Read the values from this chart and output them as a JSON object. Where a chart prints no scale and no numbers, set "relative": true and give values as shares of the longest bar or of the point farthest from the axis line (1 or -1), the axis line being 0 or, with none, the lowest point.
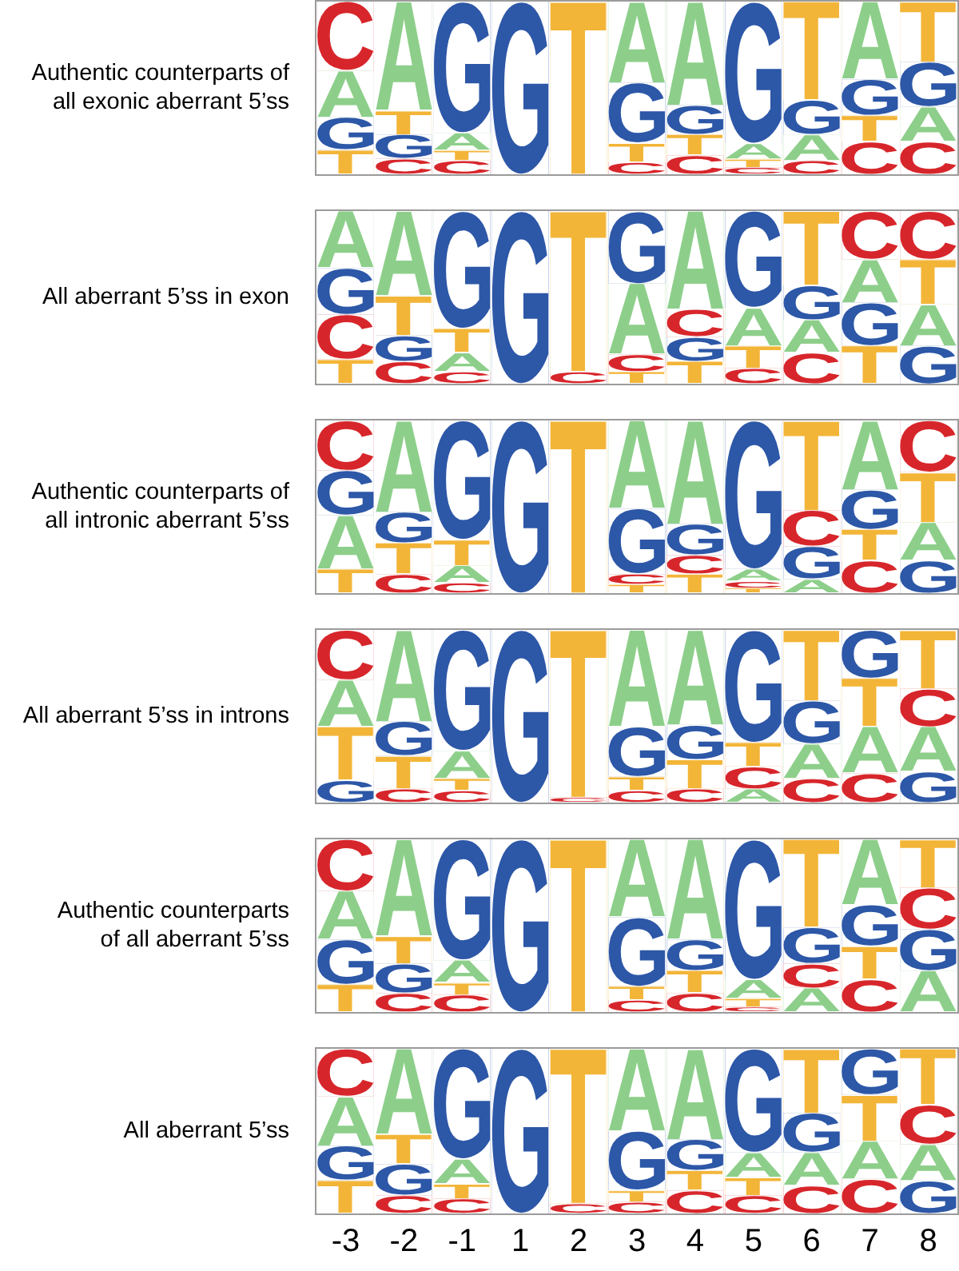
{
  "chart_data": [
    {
      "type": "bar",
      "stacked": true,
      "relative": true,
      "tick_labels": false,
      "ylabel": "Authentic counterparts of\nall exonic aberrant 5’ss",
      "categories": [
        null,
        null,
        null,
        null,
        null,
        null,
        null,
        null,
        null,
        null,
        null
      ],
      "series": [
        {
          "name": "C",
          "color": "#d7262b",
          "values": [
            null,
            0.09,
            0.08,
            null,
            null,
            0.07,
            0.11,
            0.04,
            0.08,
            0.19,
            0.19
          ]
        },
        {
          "name": "G",
          "color": "#2d57a7",
          "values": [
            null,
            null,
            null,
            1,
            null,
            null,
            null,
            null,
            null,
            null,
            null
          ]
        },
        {
          "name": "T",
          "color": "#f3b538",
          "values": [
            0.14,
            null,
            null,
            null,
            1,
            null,
            null,
            null,
            null,
            null,
            null
          ]
        },
        {
          "name": "A",
          "color": "#8dcf8a",
          "values": [
            null,
            null,
            null,
            null,
            null,
            null,
            null,
            null,
            0.15,
            null,
            0.2
          ]
        },
        {
          "name": "G",
          "color": "#2d57a7",
          "values": [
            0.19,
            0.14,
            null,
            null,
            null,
            null,
            null,
            null,
            null,
            null,
            null
          ]
        },
        {
          "name": "T",
          "color": "#f3b538",
          "values": [
            null,
            null,
            0.06,
            null,
            null,
            0.11,
            0.12,
            0.05,
            null,
            0.15,
            null
          ]
        },
        {
          "name": "A",
          "color": "#8dcf8a",
          "values": [
            0.27,
            null,
            0.1,
            null,
            null,
            null,
            null,
            0.09,
            null,
            null,
            null
          ]
        },
        {
          "name": "G",
          "color": "#2d57a7",
          "values": [
            null,
            null,
            null,
            null,
            null,
            0.35,
            0.17,
            null,
            0.2,
            0.21,
            0.26
          ]
        },
        {
          "name": "T",
          "color": "#f3b538",
          "values": [
            null,
            0.14,
            null,
            null,
            null,
            null,
            null,
            null,
            null,
            null,
            null
          ]
        },
        {
          "name": "A",
          "color": "#8dcf8a",
          "values": [
            null,
            0.63,
            null,
            null,
            null,
            0.47,
            0.6,
            null,
            null,
            0.45,
            null
          ]
        },
        {
          "name": "C",
          "color": "#d7262b",
          "values": [
            0.4,
            null,
            null,
            null,
            null,
            null,
            null,
            null,
            null,
            null,
            null
          ]
        },
        {
          "name": "G",
          "color": "#2d57a7",
          "values": [
            null,
            null,
            0.76,
            null,
            null,
            null,
            null,
            0.82,
            null,
            null,
            null
          ]
        },
        {
          "name": "T",
          "color": "#f3b538",
          "values": [
            null,
            null,
            null,
            null,
            null,
            null,
            null,
            null,
            0.57,
            null,
            0.35
          ]
        }
      ]
    },
    {
      "type": "bar",
      "stacked": true,
      "relative": true,
      "tick_labels": false,
      "ylabel": "All aberrant 5’ss in exon",
      "categories": [
        null,
        null,
        null,
        null,
        null,
        null,
        null,
        null,
        null,
        null,
        null
      ],
      "series": [
        {
          "name": "C",
          "color": "#d7262b",
          "values": [
            null,
            0.13,
            0.07,
            null,
            0.07,
            null,
            null,
            0.09,
            0.18,
            null,
            null
          ]
        },
        {
          "name": "G",
          "color": "#2d57a7",
          "values": [
            null,
            null,
            null,
            1,
            null,
            null,
            null,
            null,
            null,
            null,
            0.22
          ]
        },
        {
          "name": "T",
          "color": "#f3b538",
          "values": [
            0.14,
            null,
            null,
            null,
            null,
            0.07,
            0.13,
            null,
            null,
            0.22,
            null
          ]
        },
        {
          "name": "A",
          "color": "#8dcf8a",
          "values": [
            null,
            null,
            0.11,
            null,
            null,
            null,
            null,
            null,
            0.19,
            null,
            0.24
          ]
        },
        {
          "name": "C",
          "color": "#d7262b",
          "values": [
            0.26,
            null,
            null,
            null,
            null,
            0.1,
            null,
            null,
            null,
            null,
            null
          ]
        },
        {
          "name": "G",
          "color": "#2d57a7",
          "values": [
            null,
            0.15,
            null,
            null,
            null,
            null,
            0.14,
            null,
            null,
            0.25,
            null
          ]
        },
        {
          "name": "T",
          "color": "#f3b538",
          "values": [
            null,
            null,
            null,
            null,
            0.93,
            null,
            null,
            0.13,
            null,
            null,
            null
          ]
        },
        {
          "name": "A",
          "color": "#8dcf8a",
          "values": [
            null,
            null,
            null,
            null,
            null,
            0.41,
            null,
            0.22,
            null,
            0.25,
            null
          ]
        },
        {
          "name": "C",
          "color": "#d7262b",
          "values": [
            null,
            null,
            null,
            null,
            null,
            null,
            0.16,
            null,
            null,
            null,
            null
          ]
        },
        {
          "name": "G",
          "color": "#2d57a7",
          "values": [
            0.27,
            null,
            null,
            null,
            null,
            null,
            null,
            null,
            0.2,
            null,
            null
          ]
        },
        {
          "name": "T",
          "color": "#f3b538",
          "values": [
            null,
            0.23,
            0.14,
            null,
            null,
            null,
            null,
            null,
            null,
            null,
            0.26
          ]
        },
        {
          "name": "A",
          "color": "#8dcf8a",
          "values": [
            0.33,
            0.49,
            null,
            null,
            null,
            null,
            0.57,
            null,
            null,
            null,
            null
          ]
        },
        {
          "name": "C",
          "color": "#d7262b",
          "values": [
            null,
            null,
            null,
            null,
            null,
            null,
            null,
            null,
            null,
            0.28,
            0.28
          ]
        },
        {
          "name": "G",
          "color": "#2d57a7",
          "values": [
            null,
            null,
            0.68,
            null,
            null,
            0.42,
            null,
            0.56,
            null,
            null,
            null
          ]
        },
        {
          "name": "T",
          "color": "#f3b538",
          "values": [
            null,
            null,
            null,
            null,
            null,
            null,
            null,
            null,
            0.43,
            null,
            null
          ]
        }
      ]
    },
    {
      "type": "bar",
      "stacked": true,
      "relative": true,
      "tick_labels": false,
      "ylabel": "Authentic counterparts of\nall intronic aberrant 5’ss",
      "categories": [
        null,
        null,
        null,
        null,
        null,
        null,
        null,
        null,
        null,
        null,
        null
      ],
      "series": [
        {
          "name": "A",
          "color": "#8dcf8a",
          "values": [
            null,
            null,
            null,
            null,
            null,
            null,
            null,
            null,
            0.08,
            null,
            null
          ]
        },
        {
          "name": "C",
          "color": "#d7262b",
          "values": [
            null,
            0.11,
            0.06,
            null,
            null,
            null,
            null,
            null,
            null,
            0.19,
            null
          ]
        },
        {
          "name": "G",
          "color": "#2d57a7",
          "values": [
            null,
            null,
            null,
            1,
            null,
            null,
            null,
            null,
            null,
            null,
            0.19
          ]
        },
        {
          "name": "T",
          "color": "#f3b538",
          "values": [
            0.14,
            null,
            null,
            null,
            1,
            0.05,
            0.11,
            0.03,
            null,
            null,
            null
          ]
        },
        {
          "name": "A",
          "color": "#8dcf8a",
          "values": [
            0.31,
            null,
            0.1,
            null,
            null,
            null,
            null,
            null,
            null,
            null,
            0.22
          ]
        },
        {
          "name": "C",
          "color": "#d7262b",
          "values": [
            null,
            null,
            null,
            null,
            null,
            0.06,
            0.11,
            0.04,
            null,
            null,
            null
          ]
        },
        {
          "name": "G",
          "color": "#2d57a7",
          "values": [
            null,
            null,
            null,
            null,
            null,
            null,
            null,
            null,
            0.19,
            null,
            null
          ]
        },
        {
          "name": "T",
          "color": "#f3b538",
          "values": [
            null,
            0.18,
            null,
            null,
            null,
            null,
            null,
            null,
            null,
            0.18,
            null
          ]
        },
        {
          "name": "A",
          "color": "#8dcf8a",
          "values": [
            null,
            null,
            null,
            null,
            null,
            null,
            null,
            0.07,
            null,
            null,
            null
          ]
        },
        {
          "name": "C",
          "color": "#d7262b",
          "values": [
            null,
            null,
            null,
            null,
            null,
            null,
            null,
            null,
            0.21,
            null,
            null
          ]
        },
        {
          "name": "G",
          "color": "#2d57a7",
          "values": [
            0.26,
            0.18,
            null,
            null,
            null,
            0.38,
            0.18,
            null,
            null,
            0.23,
            null
          ]
        },
        {
          "name": "T",
          "color": "#f3b538",
          "values": [
            null,
            null,
            0.15,
            null,
            null,
            null,
            null,
            null,
            null,
            null,
            0.29
          ]
        },
        {
          "name": "A",
          "color": "#8dcf8a",
          "values": [
            null,
            0.53,
            null,
            null,
            null,
            0.51,
            0.6,
            null,
            null,
            0.4,
            null
          ]
        },
        {
          "name": "C",
          "color": "#d7262b",
          "values": [
            0.29,
            null,
            null,
            null,
            null,
            null,
            null,
            null,
            null,
            null,
            0.3
          ]
        },
        {
          "name": "G",
          "color": "#2d57a7",
          "values": [
            null,
            null,
            0.69,
            null,
            null,
            null,
            null,
            0.86,
            null,
            null,
            null
          ]
        },
        {
          "name": "T",
          "color": "#f3b538",
          "values": [
            null,
            null,
            null,
            null,
            null,
            null,
            null,
            null,
            0.52,
            null,
            null
          ]
        }
      ]
    },
    {
      "type": "bar",
      "stacked": true,
      "relative": true,
      "tick_labels": false,
      "ylabel": "All aberrant 5’ss in introns",
      "categories": [
        null,
        null,
        null,
        null,
        null,
        null,
        null,
        null,
        null,
        null,
        null
      ],
      "series": [
        {
          "name": "A",
          "color": "#8dcf8a",
          "values": [
            null,
            null,
            null,
            null,
            null,
            null,
            null,
            0.08,
            null,
            null,
            null
          ]
        },
        {
          "name": "C",
          "color": "#d7262b",
          "values": [
            null,
            0.08,
            0.07,
            null,
            0.03,
            0.07,
            0.08,
            null,
            0.14,
            0.17,
            null
          ]
        },
        {
          "name": "G",
          "color": "#2d57a7",
          "values": [
            0.13,
            null,
            null,
            1,
            null,
            null,
            null,
            null,
            null,
            null,
            0.18
          ]
        },
        {
          "name": "A",
          "color": "#8dcf8a",
          "values": [
            null,
            null,
            null,
            null,
            null,
            null,
            null,
            null,
            0.2,
            0.27,
            0.26
          ]
        },
        {
          "name": "C",
          "color": "#d7262b",
          "values": [
            null,
            null,
            null,
            null,
            null,
            null,
            null,
            0.13,
            null,
            null,
            null
          ]
        },
        {
          "name": "T",
          "color": "#f3b538",
          "values": [
            0.31,
            0.19,
            0.07,
            null,
            0.97,
            0.08,
            0.17,
            null,
            null,
            null,
            null
          ]
        },
        {
          "name": "A",
          "color": "#8dcf8a",
          "values": [
            0.27,
            null,
            0.16,
            null,
            null,
            null,
            null,
            null,
            null,
            null,
            null
          ]
        },
        {
          "name": "C",
          "color": "#d7262b",
          "values": [
            null,
            null,
            null,
            null,
            null,
            null,
            null,
            null,
            null,
            null,
            0.22
          ]
        },
        {
          "name": "G",
          "color": "#2d57a7",
          "values": [
            null,
            0.2,
            null,
            null,
            null,
            0.29,
            0.2,
            null,
            0.25,
            null,
            null
          ]
        },
        {
          "name": "T",
          "color": "#f3b538",
          "values": [
            null,
            null,
            null,
            null,
            null,
            null,
            null,
            0.14,
            null,
            0.28,
            null
          ]
        },
        {
          "name": "A",
          "color": "#8dcf8a",
          "values": [
            null,
            0.53,
            null,
            null,
            null,
            0.56,
            0.55,
            null,
            null,
            null,
            null
          ]
        },
        {
          "name": "C",
          "color": "#d7262b",
          "values": [
            0.29,
            null,
            null,
            null,
            null,
            null,
            null,
            null,
            null,
            null,
            null
          ]
        },
        {
          "name": "G",
          "color": "#2d57a7",
          "values": [
            null,
            null,
            0.7,
            null,
            null,
            null,
            null,
            0.65,
            null,
            0.28,
            null
          ]
        },
        {
          "name": "T",
          "color": "#f3b538",
          "values": [
            null,
            null,
            null,
            null,
            null,
            null,
            null,
            null,
            0.41,
            null,
            0.34
          ]
        }
      ]
    },
    {
      "type": "bar",
      "stacked": true,
      "relative": true,
      "tick_labels": false,
      "ylabel": "Authentic counterparts\nof all aberrant 5’ss",
      "categories": [
        null,
        null,
        null,
        null,
        null,
        null,
        null,
        null,
        null,
        null,
        null
      ],
      "series": [
        {
          "name": "A",
          "color": "#8dcf8a",
          "values": [
            null,
            null,
            null,
            null,
            null,
            null,
            null,
            null,
            0.14,
            null,
            0.24
          ]
        },
        {
          "name": "C",
          "color": "#d7262b",
          "values": [
            null,
            0.11,
            0.1,
            null,
            null,
            0.07,
            0.11,
            0.03,
            null,
            0.19,
            null
          ]
        },
        {
          "name": "G",
          "color": "#2d57a7",
          "values": [
            null,
            null,
            null,
            1,
            null,
            null,
            null,
            null,
            null,
            null,
            null
          ]
        },
        {
          "name": "T",
          "color": "#f3b538",
          "values": [
            0.16,
            null,
            null,
            null,
            1,
            null,
            null,
            null,
            null,
            null,
            null
          ]
        },
        {
          "name": "C",
          "color": "#d7262b",
          "values": [
            null,
            null,
            null,
            null,
            null,
            null,
            null,
            null,
            0.14,
            null,
            null
          ]
        },
        {
          "name": "G",
          "color": "#2d57a7",
          "values": [
            0.26,
            0.17,
            null,
            null,
            null,
            null,
            null,
            null,
            null,
            null,
            0.24
          ]
        },
        {
          "name": "T",
          "color": "#f3b538",
          "values": [
            null,
            null,
            0.07,
            null,
            null,
            0.08,
            0.13,
            0.05,
            null,
            0.19,
            null
          ]
        },
        {
          "name": "A",
          "color": "#8dcf8a",
          "values": [
            0.28,
            null,
            0.13,
            null,
            null,
            null,
            null,
            0.11,
            null,
            null,
            null
          ]
        },
        {
          "name": "C",
          "color": "#d7262b",
          "values": [
            null,
            null,
            null,
            null,
            null,
            null,
            null,
            null,
            null,
            null,
            0.24
          ]
        },
        {
          "name": "G",
          "color": "#2d57a7",
          "values": [
            null,
            null,
            null,
            null,
            null,
            0.4,
            0.18,
            null,
            0.21,
            0.24,
            null
          ]
        },
        {
          "name": "T",
          "color": "#f3b538",
          "values": [
            null,
            0.16,
            null,
            null,
            null,
            null,
            null,
            null,
            null,
            null,
            null
          ]
        },
        {
          "name": "A",
          "color": "#8dcf8a",
          "values": [
            null,
            0.56,
            null,
            null,
            null,
            0.45,
            0.58,
            null,
            null,
            0.38,
            null
          ]
        },
        {
          "name": "C",
          "color": "#d7262b",
          "values": [
            0.3,
            null,
            null,
            null,
            null,
            null,
            null,
            null,
            null,
            null,
            null
          ]
        },
        {
          "name": "G",
          "color": "#2d57a7",
          "values": [
            null,
            null,
            0.7,
            null,
            null,
            null,
            null,
            0.81,
            null,
            null,
            null
          ]
        },
        {
          "name": "T",
          "color": "#f3b538",
          "values": [
            null,
            null,
            null,
            null,
            null,
            null,
            null,
            null,
            0.51,
            null,
            0.28
          ]
        }
      ]
    },
    {
      "type": "bar",
      "stacked": true,
      "relative": true,
      "ylabel": "All aberrant 5’ss",
      "categories": [
        "-3",
        "-2",
        "-1",
        "1",
        "2",
        "3",
        "4",
        "5",
        "6",
        "7",
        "8"
      ],
      "series": [
        {
          "name": "C",
          "color": "#d7262b",
          "values": [
            null,
            0.11,
            0.09,
            null,
            0.06,
            0.07,
            0.14,
            0.11,
            0.17,
            0.21,
            null
          ]
        },
        {
          "name": "G",
          "color": "#2d57a7",
          "values": [
            null,
            null,
            null,
            1,
            null,
            null,
            null,
            null,
            null,
            null,
            0.2
          ]
        },
        {
          "name": "T",
          "color": "#f3b538",
          "values": [
            0.2,
            null,
            null,
            null,
            null,
            null,
            null,
            null,
            null,
            null,
            null
          ]
        },
        {
          "name": "A",
          "color": "#8dcf8a",
          "values": [
            null,
            null,
            null,
            null,
            null,
            null,
            null,
            null,
            0.2,
            0.23,
            0.22
          ]
        },
        {
          "name": "G",
          "color": "#2d57a7",
          "values": [
            0.21,
            0.19,
            null,
            null,
            null,
            null,
            null,
            null,
            null,
            null,
            null
          ]
        },
        {
          "name": "T",
          "color": "#f3b538",
          "values": [
            null,
            null,
            0.09,
            null,
            0.94,
            0.07,
            0.12,
            0.11,
            null,
            null,
            null
          ]
        },
        {
          "name": "A",
          "color": "#8dcf8a",
          "values": [
            0.3,
            null,
            0.15,
            null,
            null,
            null,
            null,
            0.15,
            null,
            null,
            null
          ]
        },
        {
          "name": "C",
          "color": "#d7262b",
          "values": [
            null,
            null,
            null,
            null,
            null,
            null,
            null,
            null,
            null,
            null,
            0.24
          ]
        },
        {
          "name": "G",
          "color": "#2d57a7",
          "values": [
            null,
            null,
            null,
            null,
            null,
            0.36,
            0.19,
            null,
            0.24,
            null,
            null
          ]
        },
        {
          "name": "T",
          "color": "#f3b538",
          "values": [
            null,
            0.18,
            null,
            null,
            null,
            null,
            null,
            null,
            null,
            0.28,
            null
          ]
        },
        {
          "name": "A",
          "color": "#8dcf8a",
          "values": [
            null,
            0.52,
            null,
            null,
            null,
            0.5,
            0.55,
            null,
            null,
            null,
            null
          ]
        },
        {
          "name": "C",
          "color": "#d7262b",
          "values": [
            0.29,
            null,
            null,
            null,
            null,
            null,
            null,
            null,
            null,
            null,
            null
          ]
        },
        {
          "name": "G",
          "color": "#2d57a7",
          "values": [
            null,
            null,
            0.67,
            null,
            null,
            null,
            null,
            0.63,
            null,
            0.28,
            null
          ]
        },
        {
          "name": "T",
          "color": "#f3b538",
          "values": [
            null,
            null,
            null,
            null,
            null,
            null,
            null,
            null,
            0.39,
            null,
            0.34
          ]
        }
      ]
    }
  ]
}
